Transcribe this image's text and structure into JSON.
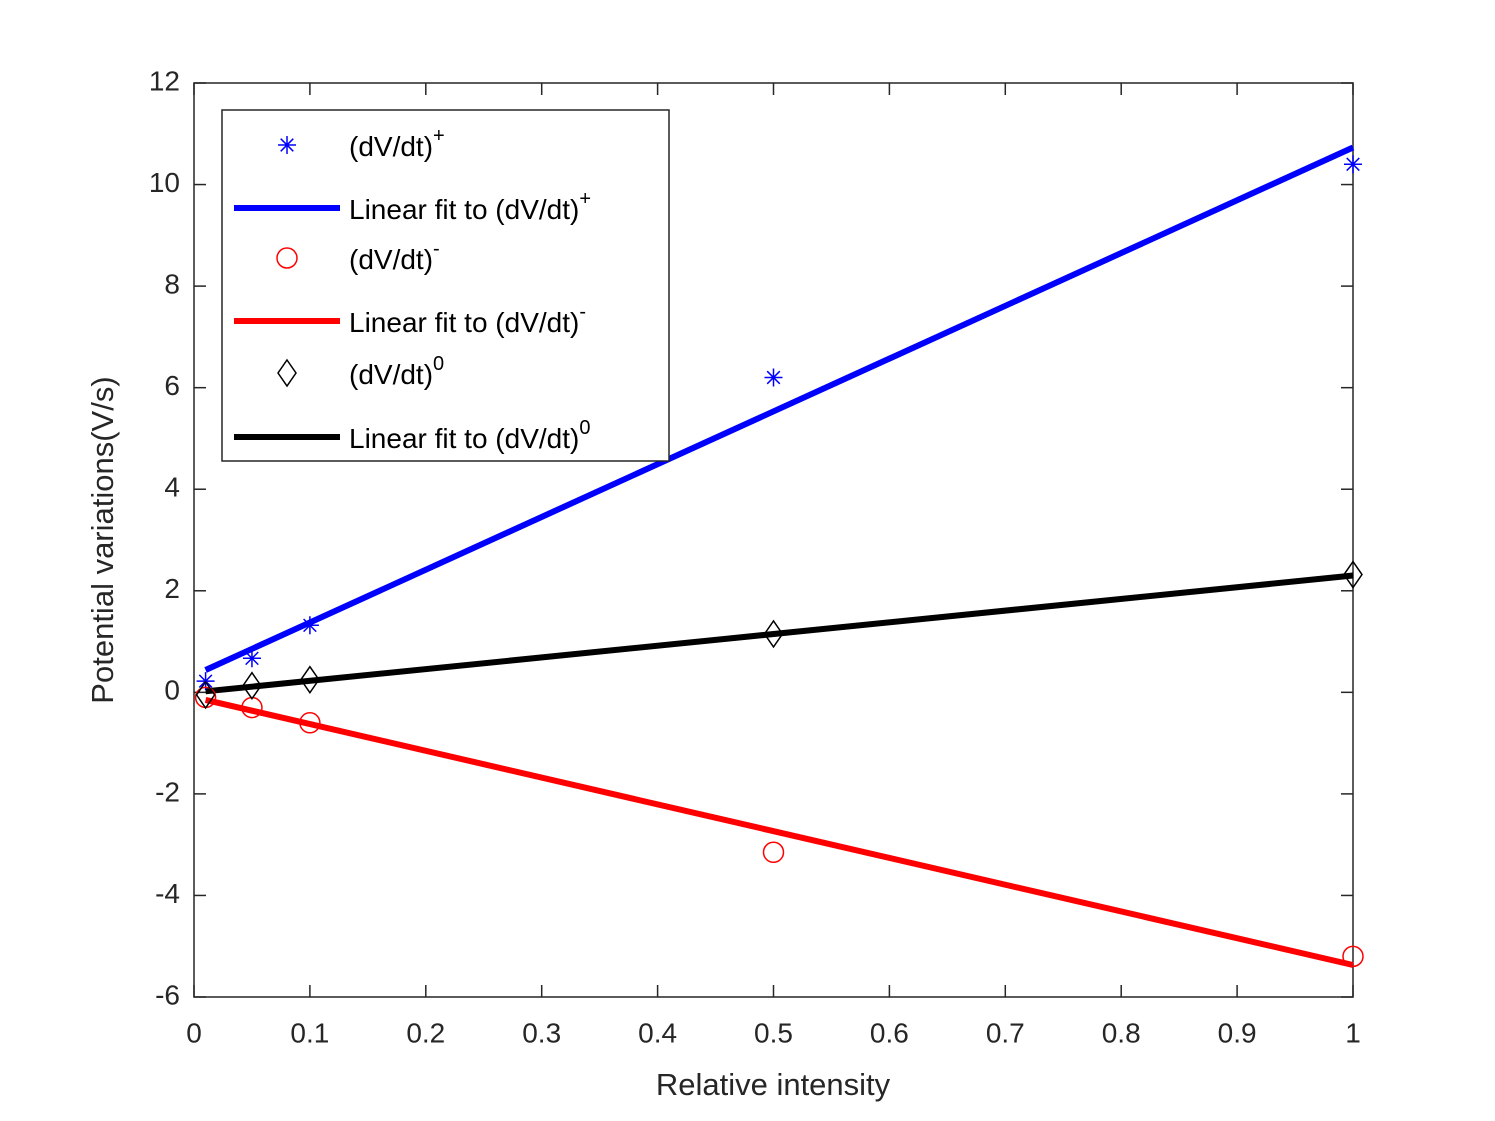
{
  "chart_data": {
    "type": "scatter",
    "xlabel": "Relative intensity",
    "ylabel": "Potential variations(V/s)",
    "xlim": [
      0,
      1
    ],
    "ylim": [
      -6,
      12
    ],
    "xticks": [
      0,
      0.1,
      0.2,
      0.3,
      0.4,
      0.5,
      0.6,
      0.7,
      0.8,
      0.9,
      1
    ],
    "yticks": [
      -6,
      -4,
      -2,
      0,
      2,
      4,
      6,
      8,
      10,
      12
    ],
    "legend": "upper left",
    "series": [
      {
        "name": "(dV/dt)",
        "name_sup": "+",
        "color": "#0000ff",
        "marker": "star",
        "x": [
          0.01,
          0.05,
          0.1,
          0.5,
          1
        ],
        "values": [
          0.22,
          0.67,
          1.32,
          6.2,
          10.4
        ]
      },
      {
        "name": "Linear fit to (dV/dt)",
        "name_sup": "+",
        "color": "#0000ff",
        "marker": "line",
        "x": [
          0.01,
          1
        ],
        "values": [
          0.44,
          10.73
        ]
      },
      {
        "name": "(dV/dt)",
        "name_sup": "-",
        "color": "#ff0000",
        "marker": "circle",
        "x": [
          0.01,
          0.05,
          0.1,
          0.5,
          1
        ],
        "values": [
          -0.1,
          -0.3,
          -0.6,
          -3.15,
          -5.2
        ]
      },
      {
        "name": "Linear fit to (dV/dt)",
        "name_sup": "-",
        "color": "#ff0000",
        "marker": "line",
        "x": [
          0.01,
          1
        ],
        "values": [
          -0.15,
          -5.37
        ]
      },
      {
        "name": "(dV/dt)",
        "name_sup": "0",
        "color": "#000000",
        "marker": "diamond",
        "x": [
          0.01,
          0.05,
          0.1,
          0.5,
          1
        ],
        "values": [
          -0.05,
          0.13,
          0.25,
          1.15,
          2.32
        ]
      },
      {
        "name": "Linear fit to (dV/dt)",
        "name_sup": "0",
        "color": "#000000",
        "marker": "line",
        "x": [
          0.01,
          1
        ],
        "values": [
          0.02,
          2.3
        ]
      }
    ]
  }
}
